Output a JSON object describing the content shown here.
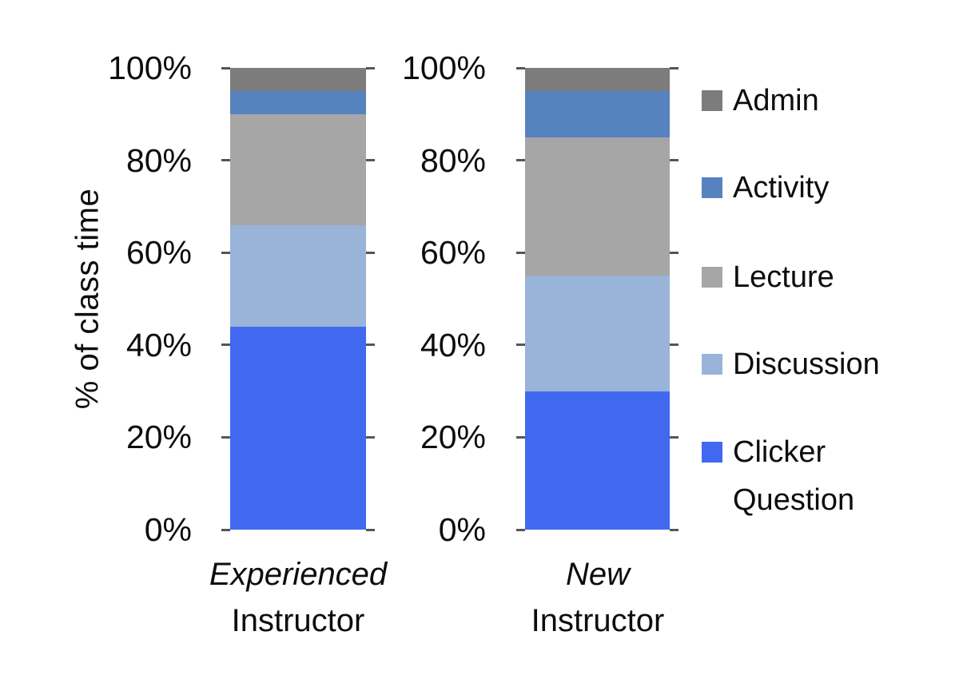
{
  "chart_data": {
    "type": "bar",
    "stacked": true,
    "title": "",
    "ylabel": "% of class time",
    "xlabel": "",
    "ylim": [
      0,
      100
    ],
    "ytick_labels": [
      "100%",
      "80%",
      "60%",
      "40%",
      "20%",
      "0%"
    ],
    "ytick_values": [
      100,
      80,
      60,
      40,
      20,
      0
    ],
    "grid": "off",
    "categories": [
      {
        "line1": "Experienced",
        "line2": "Instructor",
        "line1_style": "italic"
      },
      {
        "line1": "New",
        "line2": "Instructor",
        "line1_style": "italic"
      }
    ],
    "series": [
      {
        "name": "Clicker Question",
        "color": "#4169f0",
        "values": [
          44,
          30
        ]
      },
      {
        "name": "Discussion",
        "color": "#9ab3d8",
        "values": [
          22,
          25
        ]
      },
      {
        "name": "Lecture",
        "color": "#a6a6a6",
        "values": [
          24,
          30
        ]
      },
      {
        "name": "Activity",
        "color": "#5782c0",
        "values": [
          5,
          10
        ]
      },
      {
        "name": "Admin",
        "color": "#7c7c7c",
        "values": [
          5,
          5
        ]
      }
    ],
    "legend": {
      "position": "right",
      "items": [
        {
          "label": "Admin",
          "color": "#7c7c7c"
        },
        {
          "label": "Activity",
          "color": "#5782c0"
        },
        {
          "label": "Lecture",
          "color": "#a6a6a6"
        },
        {
          "label": "Discussion",
          "color": "#9ab3d8"
        },
        {
          "label": "Clicker Question",
          "color": "#4169f0"
        }
      ]
    }
  }
}
